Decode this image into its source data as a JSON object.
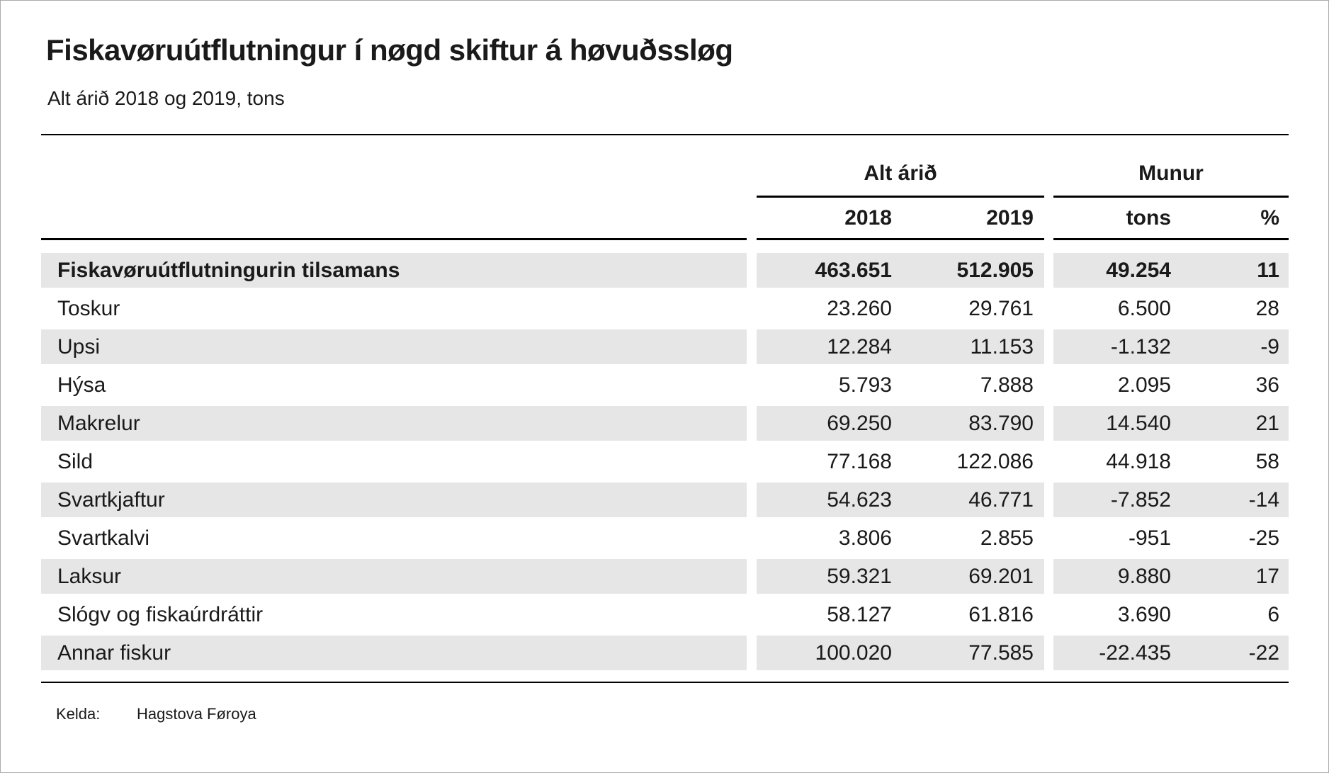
{
  "title": "Fiskavøruútflutningur í nøgd skiftur á høvuðssløg",
  "subtitle": "Alt árið 2018 og 2019, tons",
  "table": {
    "group_headers": {
      "alt_arid": "Alt árið",
      "munur": "Munur"
    },
    "col_headers": {
      "y2018": "2018",
      "y2019": "2019",
      "tons": "tons",
      "pct": "%"
    },
    "rows": [
      {
        "label": "Fiskavøruútflutningurin tilsamans",
        "y2018": "463.651",
        "y2019": "512.905",
        "tons": "49.254",
        "pct": "11",
        "bold": true
      },
      {
        "label": "Toskur",
        "y2018": "23.260",
        "y2019": "29.761",
        "tons": "6.500",
        "pct": "28",
        "bold": false
      },
      {
        "label": "Upsi",
        "y2018": "12.284",
        "y2019": "11.153",
        "tons": "-1.132",
        "pct": "-9",
        "bold": false
      },
      {
        "label": "Hýsa",
        "y2018": "5.793",
        "y2019": "7.888",
        "tons": "2.095",
        "pct": "36",
        "bold": false
      },
      {
        "label": "Makrelur",
        "y2018": "69.250",
        "y2019": "83.790",
        "tons": "14.540",
        "pct": "21",
        "bold": false
      },
      {
        "label": "Sild",
        "y2018": "77.168",
        "y2019": "122.086",
        "tons": "44.918",
        "pct": "58",
        "bold": false
      },
      {
        "label": "Svartkjaftur",
        "y2018": "54.623",
        "y2019": "46.771",
        "tons": "-7.852",
        "pct": "-14",
        "bold": false
      },
      {
        "label": "Svartkalvi",
        "y2018": "3.806",
        "y2019": "2.855",
        "tons": "-951",
        "pct": "-25",
        "bold": false
      },
      {
        "label": "Laksur",
        "y2018": "59.321",
        "y2019": "69.201",
        "tons": "9.880",
        "pct": "17",
        "bold": false
      },
      {
        "label": "Slógv og fiskaúrdráttir",
        "y2018": "58.127",
        "y2019": "61.816",
        "tons": "3.690",
        "pct": "6",
        "bold": false
      },
      {
        "label": "Annar fiskur",
        "y2018": "100.020",
        "y2019": "77.585",
        "tons": "-22.435",
        "pct": "-22",
        "bold": false
      }
    ]
  },
  "footer": {
    "source_label": "Kelda:",
    "source_value": "Hagstova Føroya"
  },
  "colors": {
    "stripe": "#e6e6e6",
    "text": "#1a1a1a",
    "rule": "#000000",
    "page_border": "#ababab"
  },
  "chart_data": {
    "type": "table",
    "title": "Fiskavøruútflutningur í nøgd skiftur á høvuðssløg",
    "subtitle": "Alt árið 2018 og 2019, tons",
    "column_groups": [
      "Alt árið",
      "Munur"
    ],
    "columns": [
      "2018",
      "2019",
      "Munur tons",
      "Munur %"
    ],
    "categories": [
      "Fiskavøruútflutningurin tilsamans",
      "Toskur",
      "Upsi",
      "Hýsa",
      "Makrelur",
      "Sild",
      "Svartkjaftur",
      "Svartkalvi",
      "Laksur",
      "Slógv og fiskaúrdráttir",
      "Annar fiskur"
    ],
    "series": [
      {
        "name": "2018",
        "values": [
          463651,
          23260,
          12284,
          5793,
          69250,
          77168,
          54623,
          3806,
          59321,
          58127,
          100020
        ]
      },
      {
        "name": "2019",
        "values": [
          512905,
          29761,
          11153,
          7888,
          83790,
          122086,
          46771,
          2855,
          69201,
          61816,
          77585
        ]
      },
      {
        "name": "Munur tons",
        "values": [
          49254,
          6500,
          -1132,
          2095,
          14540,
          44918,
          -7852,
          -951,
          9880,
          3690,
          -22435
        ]
      },
      {
        "name": "Munur %",
        "values": [
          11,
          28,
          -9,
          36,
          21,
          58,
          -14,
          -25,
          17,
          6,
          -22
        ]
      }
    ],
    "source": "Hagstova Føroya"
  }
}
